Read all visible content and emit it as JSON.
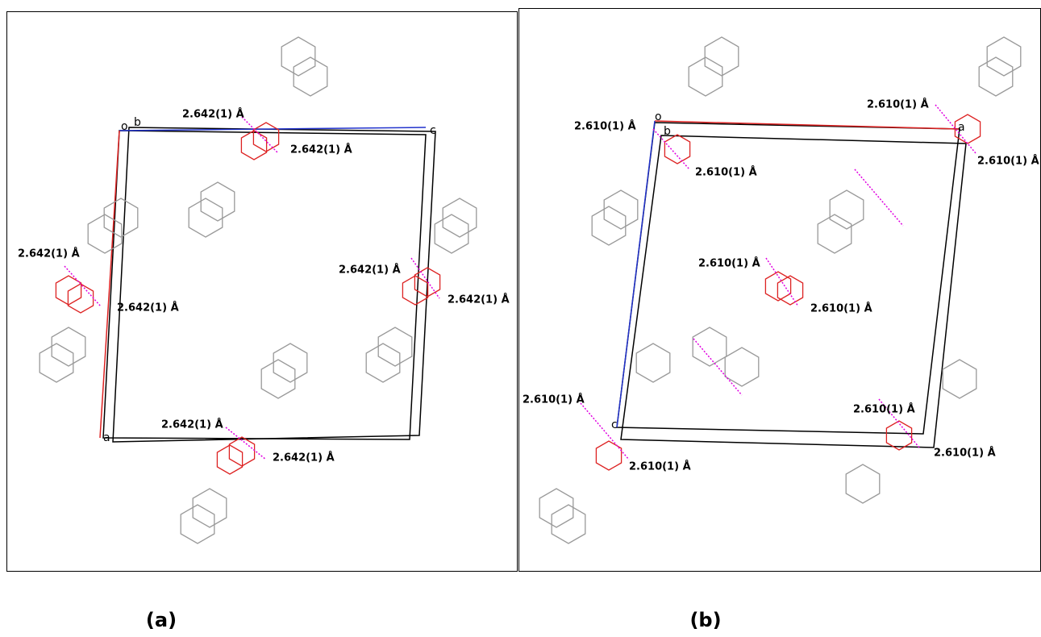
{
  "panels": [
    {
      "caption": "(a)",
      "axis_labels": [
        "o",
        "b",
        "c",
        "a"
      ],
      "distances": [
        "2.642(1) Å",
        "2.642(1) Å",
        "2.642(1) Å",
        "2.642(1) Å",
        "2.642(1) Å",
        "2.642(1) Å",
        "2.642(1) Å",
        "2.642(1) Å"
      ]
    },
    {
      "caption": "(b)",
      "axis_labels": [
        "o",
        "b",
        "a",
        "c"
      ],
      "distances": [
        "2.610(1) Å",
        "2.610(1) Å",
        "2.610(1) Å",
        "2.610(1) Å",
        "2.610(1) Å",
        "2.610(1) Å",
        "2.610(1) Å",
        "2.610(1) Å",
        "2.610(1) Å",
        "2.610(1) Å"
      ]
    }
  ]
}
